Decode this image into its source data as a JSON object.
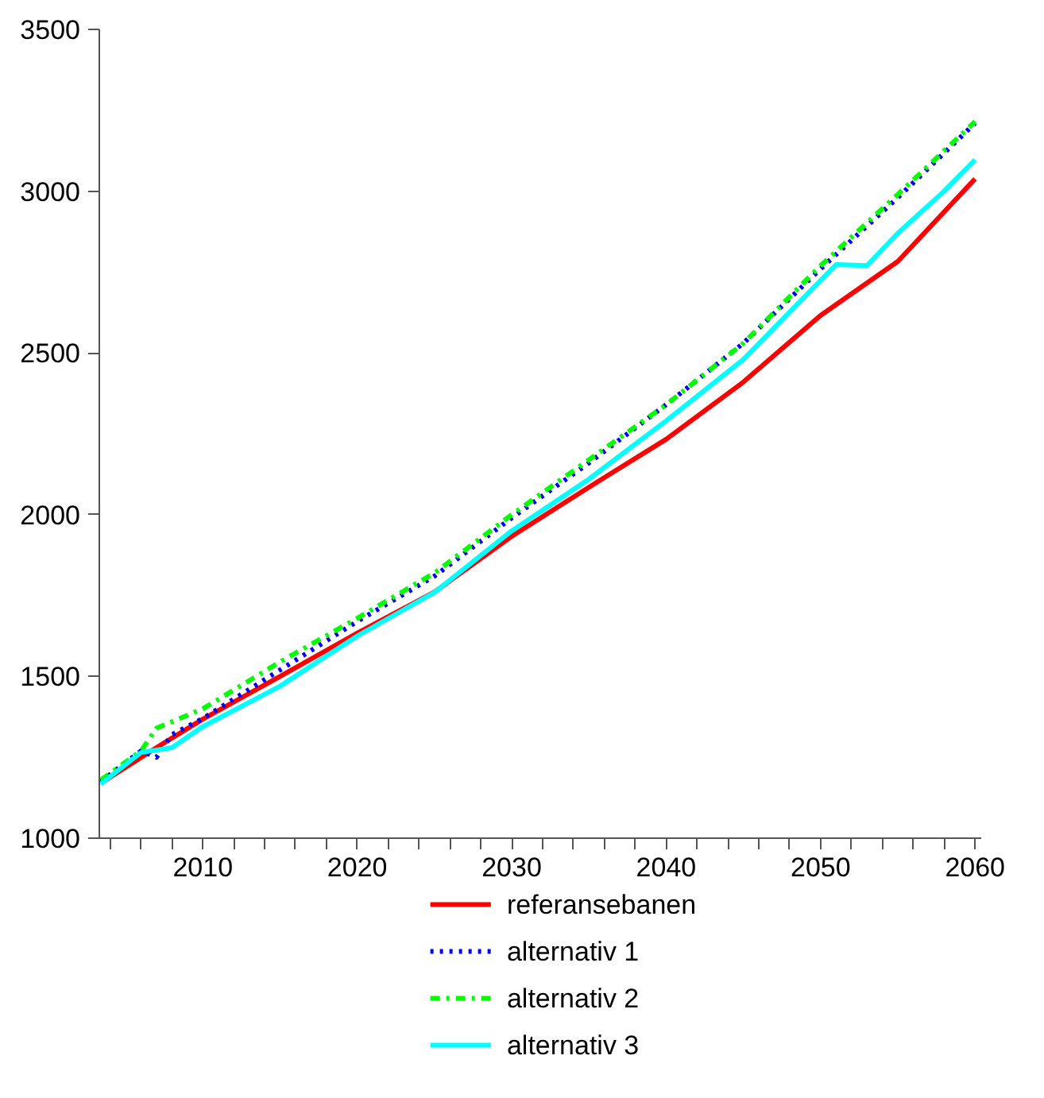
{
  "chart_data": {
    "type": "line",
    "xlim": [
      2003.3,
      2060.4
    ],
    "ylim": [
      1000,
      3500
    ],
    "xticks": [
      {
        "value": 2004,
        "label": null
      },
      {
        "value": 2006,
        "label": null
      },
      {
        "value": 2008,
        "label": null
      },
      2010,
      {
        "value": 2012,
        "label": null
      },
      {
        "value": 2014,
        "label": null
      },
      {
        "value": 2016,
        "label": null
      },
      {
        "value": 2018,
        "label": null
      },
      2020,
      {
        "value": 2022,
        "label": null
      },
      {
        "value": 2024,
        "label": null
      },
      {
        "value": 2026,
        "label": null
      },
      {
        "value": 2028,
        "label": null
      },
      2030,
      {
        "value": 2032,
        "label": null
      },
      {
        "value": 2034,
        "label": null
      },
      {
        "value": 2036,
        "label": null
      },
      {
        "value": 2038,
        "label": null
      },
      2040,
      {
        "value": 2042,
        "label": null
      },
      {
        "value": 2044,
        "label": null
      },
      {
        "value": 2046,
        "label": null
      },
      {
        "value": 2048,
        "label": null
      },
      2050,
      {
        "value": 2052,
        "label": null
      },
      {
        "value": 2054,
        "label": null
      },
      {
        "value": 2056,
        "label": null
      },
      {
        "value": 2058,
        "label": null
      },
      2060
    ],
    "yticks": [
      1000,
      1500,
      2000,
      2500,
      3000,
      3500
    ],
    "grid": false,
    "legend": "bottom",
    "series": [
      {
        "name": "referansebanen",
        "color": "#ff0000",
        "line_style": "solid",
        "x": [
          2003.4,
          2007,
          2010,
          2015,
          2020,
          2025,
          2030,
          2035,
          2040,
          2045,
          2050,
          2055,
          2060
        ],
        "values": [
          1170,
          1280,
          1368,
          1500,
          1634,
          1761,
          1933,
          2085,
          2233,
          2410,
          2616,
          2783,
          3038
        ]
      },
      {
        "name": "alternativ 1",
        "color": "#0000ff",
        "line_style": "dotted",
        "x": [
          2003.4,
          2006,
          2007,
          2008,
          2010,
          2015,
          2020,
          2025,
          2030,
          2035,
          2040,
          2045,
          2050,
          2055,
          2060
        ],
        "values": [
          1175,
          1270,
          1250,
          1320,
          1370,
          1520,
          1670,
          1810,
          1990,
          2160,
          2340,
          2530,
          2760,
          2980,
          3210
        ]
      },
      {
        "name": "alternativ 2",
        "color": "#00ff00",
        "line_style": "dashdot",
        "x": [
          2003.4,
          2006,
          2007,
          2010,
          2015,
          2020,
          2025,
          2030,
          2035,
          2040,
          2045,
          2050,
          2055,
          2060
        ],
        "values": [
          1180,
          1270,
          1340,
          1400,
          1545,
          1680,
          1820,
          2000,
          2170,
          2340,
          2530,
          2770,
          2990,
          3215
        ]
      },
      {
        "name": "alternativ 3",
        "color": "#00ffff",
        "line_style": "solid",
        "x": [
          2003.4,
          2006,
          2008,
          2010,
          2015,
          2020,
          2025,
          2030,
          2035,
          2040,
          2045,
          2051,
          2053,
          2055,
          2058,
          2060
        ],
        "values": [
          1168,
          1265,
          1280,
          1345,
          1470,
          1625,
          1760,
          1950,
          2110,
          2290,
          2480,
          2773,
          2770,
          2870,
          3000,
          3097
        ]
      }
    ]
  }
}
